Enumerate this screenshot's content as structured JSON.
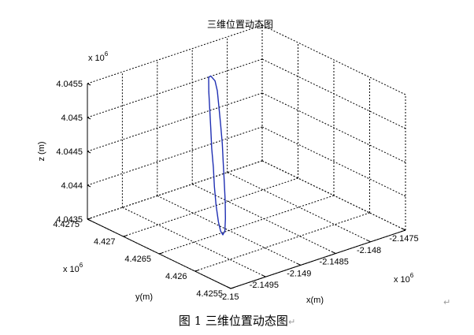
{
  "caption": {
    "label": "图 1  三维位置动态图",
    "mark": "↵"
  },
  "chart_data": {
    "type": "line3d",
    "title": "三维位置动态图",
    "xlabel": "x(m)",
    "ylabel": "y(m)",
    "zlabel": "z (m)",
    "multiplier": {
      "base": "x 10",
      "exp": "6"
    },
    "xlim": [
      -2.15,
      -2.1475
    ],
    "ylim": [
      4.4255,
      4.4275
    ],
    "zlim": [
      4.0435,
      4.0455
    ],
    "x_ticks": [
      -2.15,
      -2.1495,
      -2.149,
      -2.1485,
      -2.148,
      -2.1475
    ],
    "x_tick_labels": [
      "-2.15",
      "-2.1495",
      "-2.149",
      "-2.1485",
      "-2.148",
      "-2.1475"
    ],
    "y_ticks": [
      4.4255,
      4.426,
      4.4265,
      4.427,
      4.4275
    ],
    "y_tick_labels": [
      "4.4255",
      "4.426",
      "4.4265",
      "4.427",
      "4.4275"
    ],
    "z_ticks": [
      4.0435,
      4.044,
      4.0445,
      4.045,
      4.0455
    ],
    "z_tick_labels": [
      "4.0435",
      "4.044",
      "4.0445",
      "4.045",
      "4.0455"
    ],
    "grid": true,
    "box": true,
    "series": [
      {
        "color": "#1f2fb3",
        "closed": true,
        "points": [
          [
            -2.14845,
            4.42732,
            4.04515
          ],
          [
            -2.14855,
            4.42722,
            4.04502
          ],
          [
            -2.14868,
            4.42708,
            4.04488
          ],
          [
            -2.14882,
            4.42693,
            4.04472
          ],
          [
            -2.14897,
            4.42677,
            4.04456
          ],
          [
            -2.14911,
            4.42661,
            4.04441
          ],
          [
            -2.14926,
            4.42645,
            4.04426
          ],
          [
            -2.1494,
            4.42629,
            4.04412
          ],
          [
            -2.14952,
            4.42614,
            4.04399
          ],
          [
            -2.14958,
            4.42605,
            4.04392
          ],
          [
            -2.14959,
            4.42601,
            4.04389
          ],
          [
            -2.14954,
            4.42603,
            4.04392
          ],
          [
            -2.14944,
            4.42612,
            4.04402
          ],
          [
            -2.1493,
            4.42626,
            4.04416
          ],
          [
            -2.14915,
            4.42642,
            4.04431
          ],
          [
            -2.149,
            4.42658,
            4.04446
          ],
          [
            -2.14885,
            4.42674,
            4.04461
          ],
          [
            -2.14871,
            4.4269,
            4.04476
          ],
          [
            -2.14858,
            4.42705,
            4.0449
          ],
          [
            -2.14847,
            4.42718,
            4.04503
          ],
          [
            -2.14841,
            4.42727,
            4.04511
          ],
          [
            -2.14842,
            4.42732,
            4.04516
          ],
          [
            -2.14845,
            4.42732,
            4.04515
          ]
        ]
      }
    ]
  }
}
